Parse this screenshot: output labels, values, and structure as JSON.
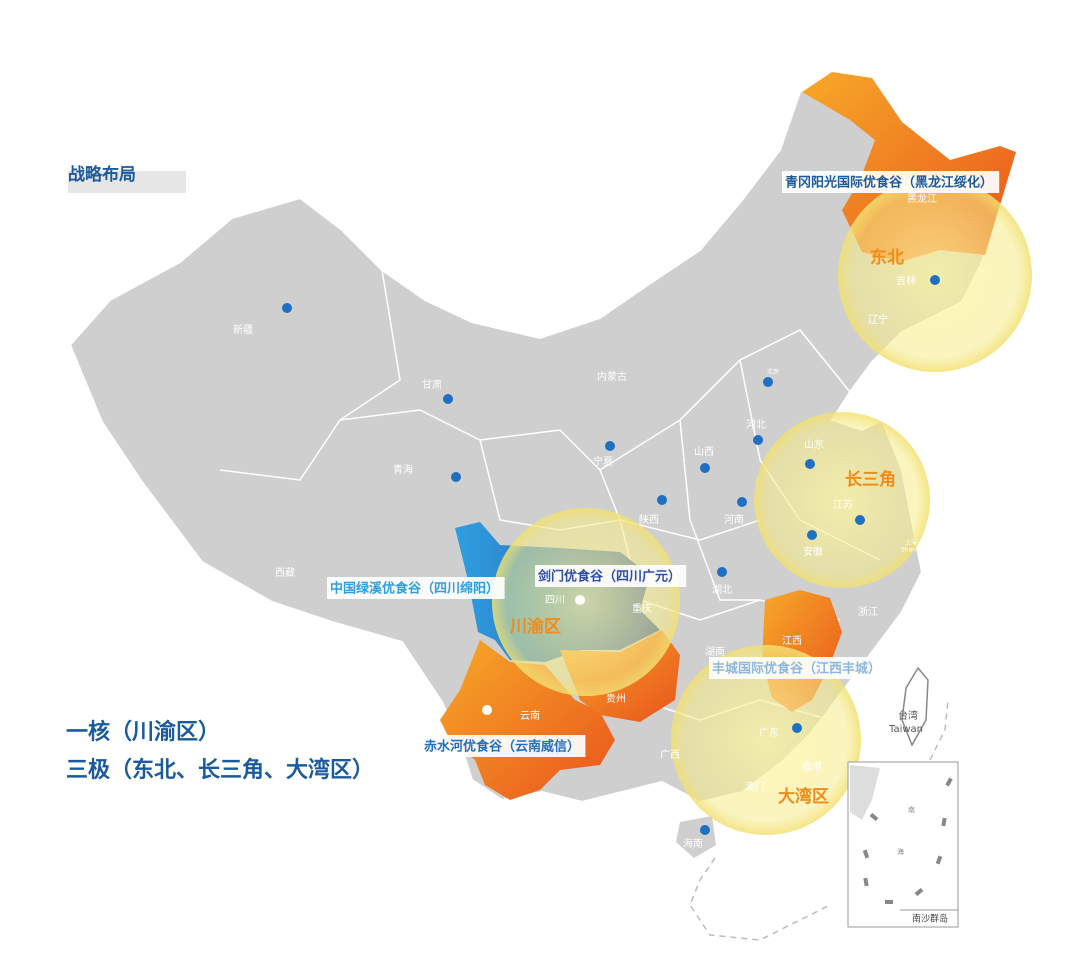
{
  "title": "战略布局",
  "summary": [
    "一核（川渝区）",
    "三极（东北、长三角、大湾区）"
  ],
  "hubs": [
    {
      "label": "东北"
    },
    {
      "label": "长三角"
    },
    {
      "label": "川渝区"
    },
    {
      "label": "大湾区"
    }
  ],
  "parks": [
    {
      "label": "青冈阳光国际优食谷（黑龙江绥化）"
    },
    {
      "label": "中国绿溪优食谷（四川绵阳）"
    },
    {
      "label": "剑门优食谷（四川广元）"
    },
    {
      "label": "丰城国际优食谷（江西丰城）"
    },
    {
      "label": "赤水河优食谷（云南威信）"
    }
  ],
  "provinces": [
    {
      "label": "新疆"
    },
    {
      "label": "甘肃"
    },
    {
      "label": "内蒙古"
    },
    {
      "label": "青海"
    },
    {
      "label": "西藏"
    },
    {
      "label": "宁夏"
    },
    {
      "label": "山西"
    },
    {
      "label": "河北"
    },
    {
      "label": "北京"
    },
    {
      "label": "山东"
    },
    {
      "label": "陕西"
    },
    {
      "label": "河南"
    },
    {
      "label": "江苏"
    },
    {
      "label": "安徽"
    },
    {
      "label": "上海"
    },
    {
      "label": "Shanghai"
    },
    {
      "label": "四川"
    },
    {
      "label": "重庆"
    },
    {
      "label": "湖北"
    },
    {
      "label": "浙江"
    },
    {
      "label": "湖南"
    },
    {
      "label": "江西"
    },
    {
      "label": "贵州"
    },
    {
      "label": "云南"
    },
    {
      "label": "广西"
    },
    {
      "label": "广东"
    },
    {
      "label": "香港"
    },
    {
      "label": "澳门"
    },
    {
      "label": "海南"
    },
    {
      "label": "黑龙江"
    },
    {
      "label": "吉林"
    },
    {
      "label": "辽宁"
    },
    {
      "label": "台湾"
    },
    {
      "label": "Taiwan"
    }
  ],
  "inset": {
    "label": "南沙群岛",
    "sea": [
      "南",
      "海"
    ]
  }
}
